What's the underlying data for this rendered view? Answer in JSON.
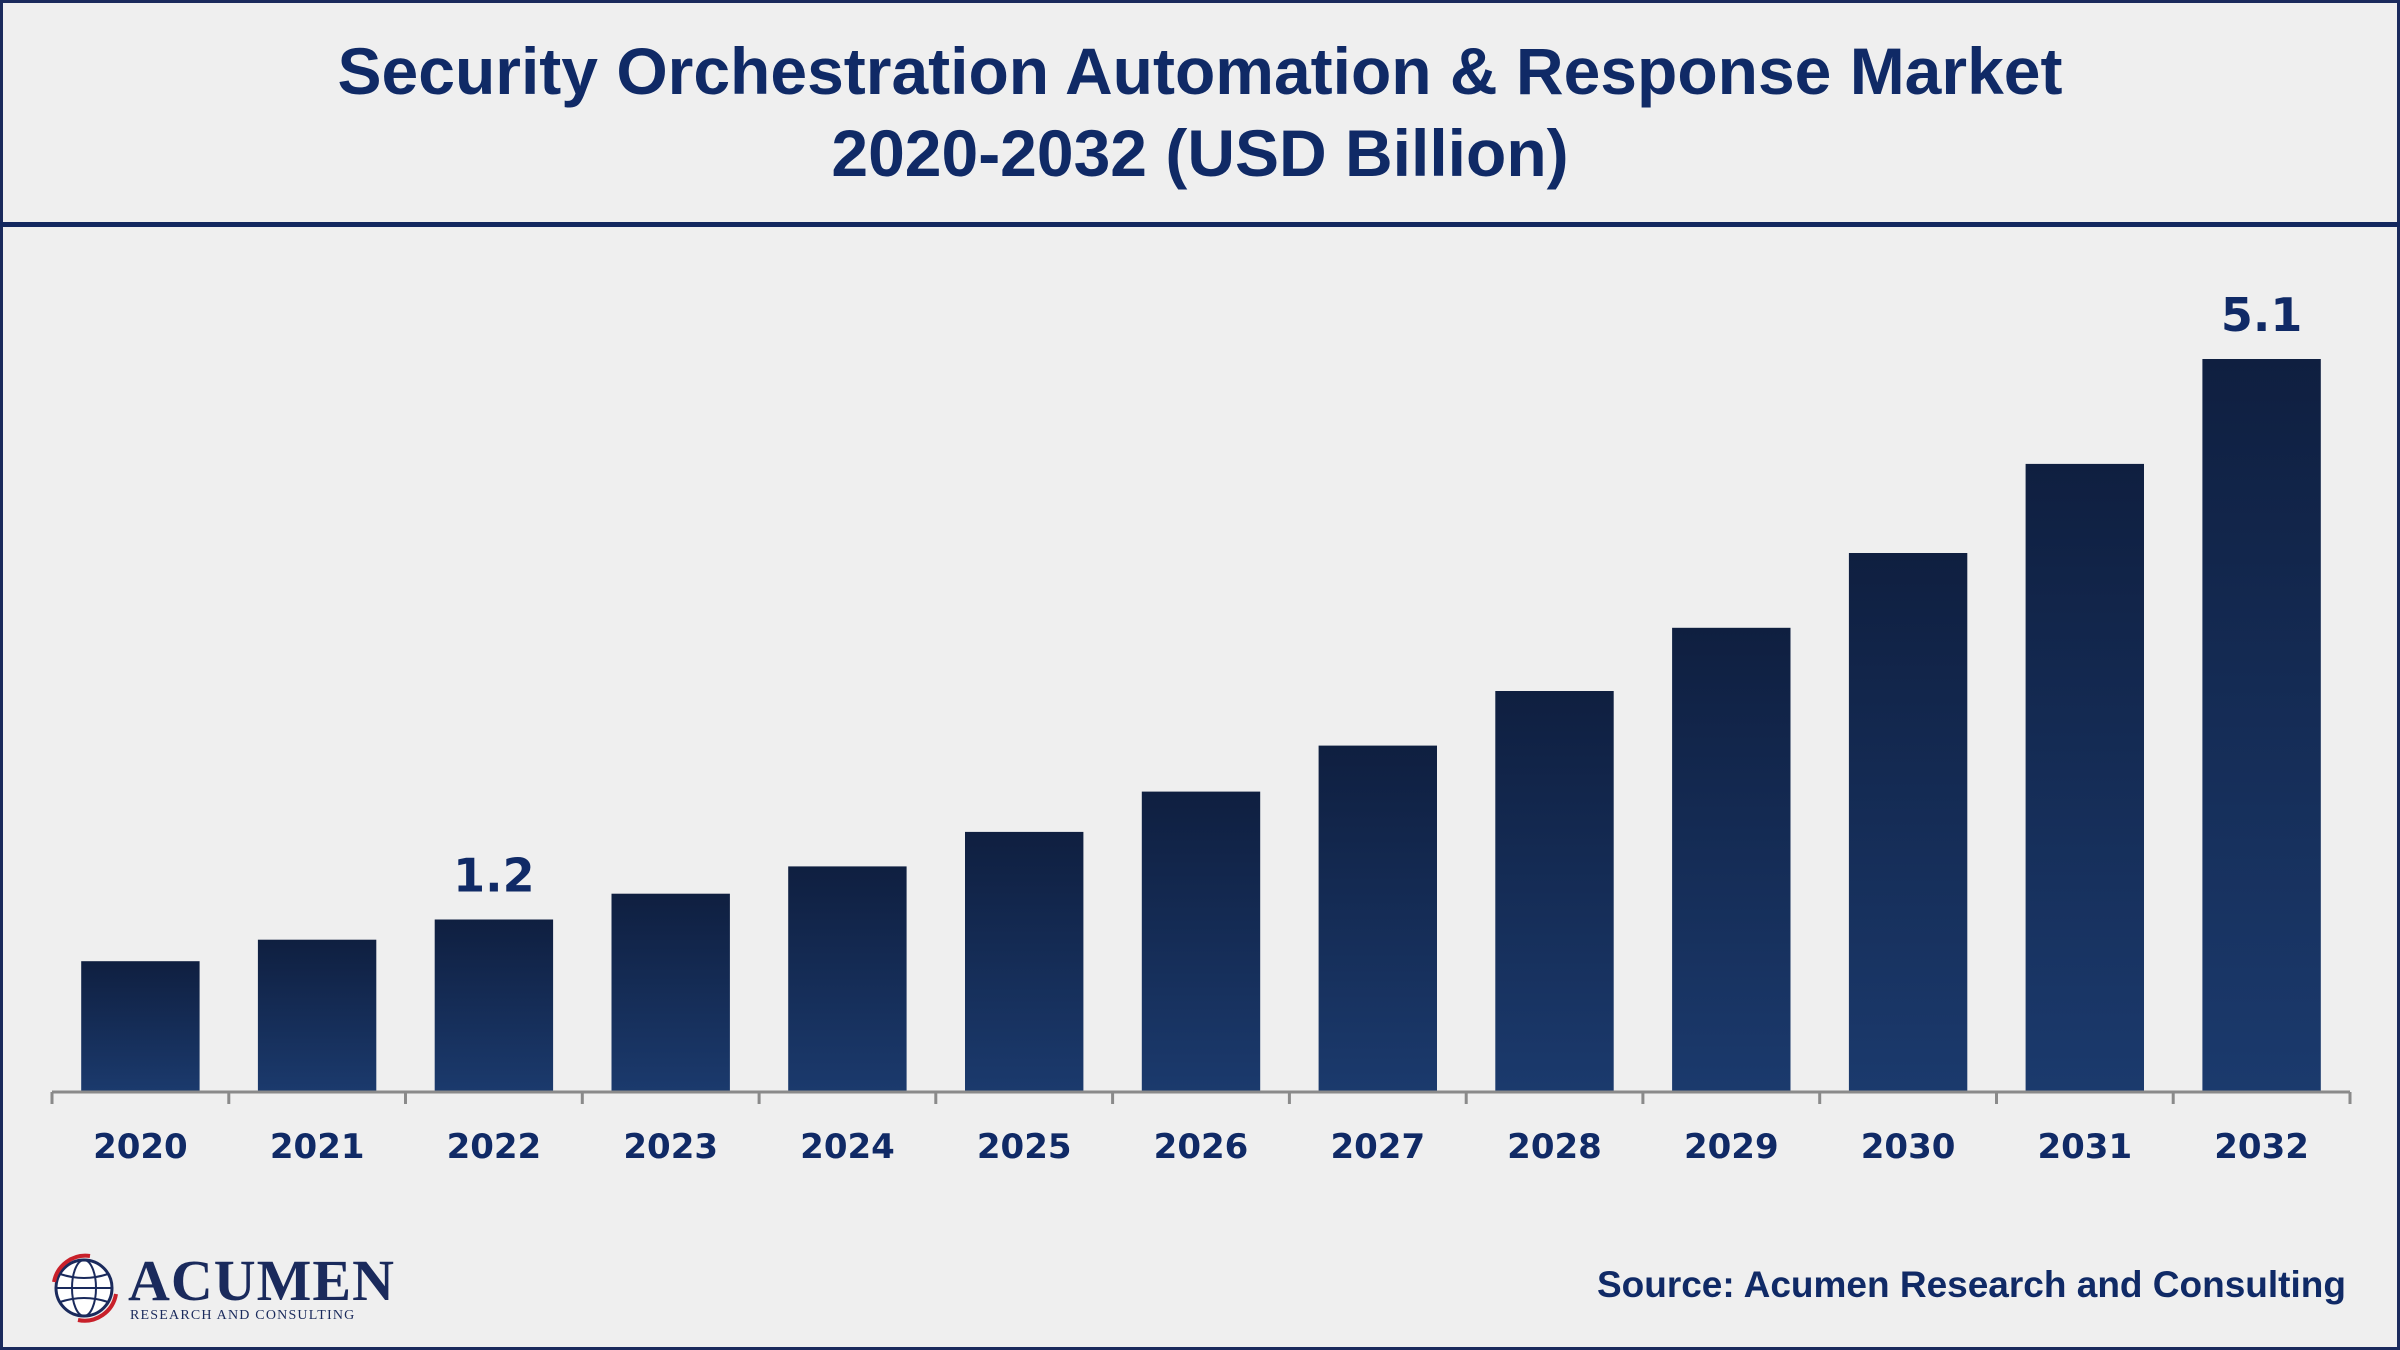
{
  "header": {
    "title_line1": "Security Orchestration Automation & Response Market",
    "title_line2": "2020-2032 (USD Billion)"
  },
  "footer": {
    "source": "Source: Acumen Research and Consulting",
    "logo_name": "ACUMEN",
    "logo_tagline": "RESEARCH AND CONSULTING"
  },
  "colors": {
    "background": "#efefef",
    "title": "#102a66",
    "bar_top": "#0f1f40",
    "bar_bottom": "#1b3a6d",
    "axis": "#8a8a8a"
  },
  "chart_data": {
    "type": "bar",
    "title": "Security Orchestration Automation & Response Market 2020-2032 (USD Billion)",
    "categories": [
      "2020",
      "2021",
      "2022",
      "2023",
      "2024",
      "2025",
      "2026",
      "2027",
      "2028",
      "2029",
      "2030",
      "2031",
      "2032"
    ],
    "values": [
      0.91,
      1.06,
      1.2,
      1.38,
      1.57,
      1.81,
      2.09,
      2.41,
      2.79,
      3.23,
      3.75,
      4.37,
      5.1
    ],
    "data_labels": [
      {
        "index": 2,
        "text": "1.2"
      },
      {
        "index": 12,
        "text": "5.1"
      }
    ],
    "xlabel": "",
    "ylabel": "",
    "ylim": [
      0,
      5.1
    ],
    "grid": false,
    "legend": "none"
  }
}
